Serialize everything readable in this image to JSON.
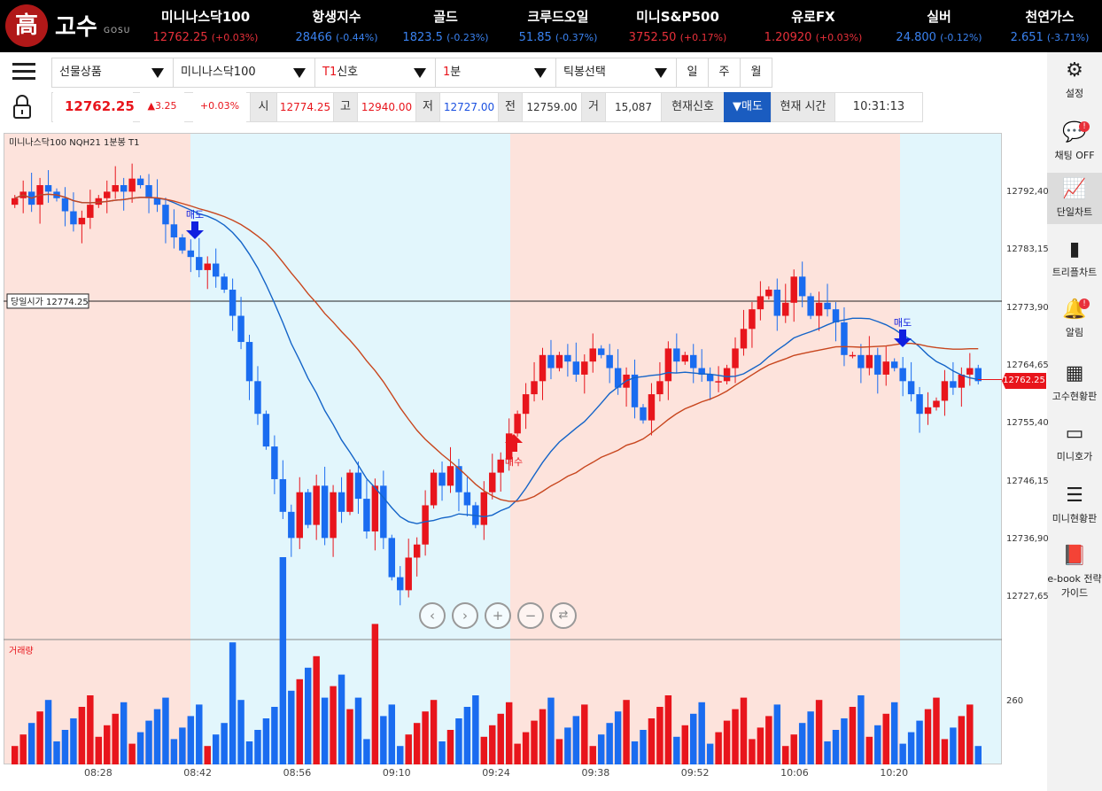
{
  "brand": {
    "logo_char": "高",
    "name": "고수",
    "sub": "GOSU"
  },
  "tickers": [
    {
      "name": "미니나스닥100",
      "value": "12762.25",
      "change": "(+0.03%)",
      "dir": "up"
    },
    {
      "name": "항생지수",
      "value": "28466",
      "change": "(-0.44%)",
      "dir": "down"
    },
    {
      "name": "골드",
      "value": "1823.5",
      "change": "(-0.23%)",
      "dir": "down"
    },
    {
      "name": "크루드오일",
      "value": "51.85",
      "change": "(-0.37%)",
      "dir": "down"
    },
    {
      "name": "미니S&P500",
      "value": "3752.50",
      "change": "(+0.17%)",
      "dir": "up"
    },
    {
      "name": "유로FX",
      "value": "1.20920",
      "change": "(+0.03%)",
      "dir": "up"
    },
    {
      "name": "실버",
      "value": "24.800",
      "change": "(-0.12%)",
      "dir": "down"
    },
    {
      "name": "천연가스",
      "value": "2.651",
      "change": "(-3.71%)",
      "dir": "down"
    }
  ],
  "controls": {
    "product": "선물상품",
    "symbol": "미니나스닥100",
    "signal_prefix": "T1",
    "signal": "신호",
    "interval_prefix": "1",
    "interval": "분",
    "candle": "틱봉선택",
    "day": "일",
    "week": "주",
    "month": "월"
  },
  "quote": {
    "price": "12762.25",
    "change": "▲3.25",
    "pct": "+0.03%",
    "open_label": "시",
    "open": "12774.25",
    "high_label": "고",
    "high": "12940.00",
    "low_label": "저",
    "low": "12727.00",
    "prev_label": "전",
    "prev": "12759.00",
    "vol_label": "거",
    "vol": "15,087",
    "signal_label": "현재신호",
    "signal": "▼매도",
    "time_label": "현재 시간",
    "time": "10:31:13"
  },
  "sidebar": [
    {
      "label": "설정",
      "icon": "gear-icon"
    },
    {
      "label": "채팅 OFF",
      "icon": "chat-icon",
      "badge": "!"
    },
    {
      "label": "단일차트",
      "icon": "line-chart-icon"
    },
    {
      "label": "트리플차트",
      "icon": "bar-chart-icon"
    },
    {
      "label": "알림",
      "icon": "bell-icon",
      "badge": "!"
    },
    {
      "label": "고수현황판",
      "icon": "grid-icon"
    },
    {
      "label": "미니호가",
      "icon": "phone-icon"
    },
    {
      "label": "미니현황판",
      "icon": "list-icon"
    },
    {
      "label": "e-book 전략가이드",
      "icon": "ebook-icon"
    }
  ],
  "colors": {
    "up": "#e8151c",
    "down": "#1a6cf0",
    "ma": "#1464c8",
    "ma2": "#c8461e",
    "sell_zone": "#fde3dc",
    "buy_zone": "#e2f6fc"
  },
  "chart_data": {
    "type": "candlestick",
    "title": "미니나스닥100  NQH21  1분봉  T1",
    "y_ticks": [
      "12792,40",
      "12783,15",
      "12773,90",
      "12764,65",
      "12755,40",
      "12746,15",
      "12736,90",
      "12727,65"
    ],
    "x_ticks": [
      "08:28",
      "08:42",
      "08:56",
      "09:10",
      "09:24",
      "09:38",
      "09:52",
      "10:06",
      "10:20"
    ],
    "ylim": [
      12723,
      12800
    ],
    "open_line": {
      "label": "당일시가 12774.25",
      "value": 12774.25
    },
    "current_price": "12762.25",
    "volume_label": "거래량",
    "volume_tick": "260",
    "signals": [
      {
        "label": "매도",
        "type": "sell",
        "time": "08:44"
      },
      {
        "label": "매수",
        "type": "buy",
        "time": "09:25"
      },
      {
        "label": "매도",
        "type": "sell",
        "time": "10:20"
      }
    ],
    "zones": [
      {
        "type": "sell",
        "from": "08:26",
        "to": "08:44"
      },
      {
        "type": "buy",
        "from": "08:44",
        "to": "09:25"
      },
      {
        "type": "sell",
        "from": "09:25",
        "to": "10:20"
      },
      {
        "type": "buy",
        "from": "10:20",
        "to": "10:33"
      }
    ],
    "close": [
      12790,
      12791,
      12789,
      12792,
      12791,
      12790,
      12788,
      12786,
      12787,
      12789,
      12790,
      12791,
      12792,
      12791,
      12793,
      12792,
      12790,
      12789,
      12786,
      12784,
      12782,
      12781,
      12779,
      12780,
      12778,
      12776,
      12772,
      12768,
      12762,
      12757,
      12752,
      12747,
      12742,
      12738,
      12745,
      12740,
      12746,
      12738,
      12745,
      12742,
      12748,
      12744,
      12739,
      12746,
      12738,
      12732,
      12730,
      12735,
      12737,
      12743,
      12748,
      12746,
      12749,
      12745,
      12743,
      12740,
      12745,
      12748,
      12750,
      12754,
      12757,
      12760,
      12762,
      12766,
      12764,
      12766,
      12765,
      12763,
      12765,
      12767,
      12766,
      12764,
      12761,
      12763,
      12758,
      12756,
      12760,
      12762,
      12767,
      12765,
      12766,
      12764,
      12763,
      12762,
      12762,
      12764,
      12767,
      12770,
      12773,
      12775,
      12776,
      12772,
      12774,
      12778,
      12775,
      12772,
      12774,
      12773,
      12771,
      12766,
      12766,
      12764,
      12766,
      12763,
      12765,
      12764,
      12762,
      12760,
      12757,
      12758,
      12759,
      12762,
      12761,
      12763,
      12764,
      12762
    ]
  }
}
